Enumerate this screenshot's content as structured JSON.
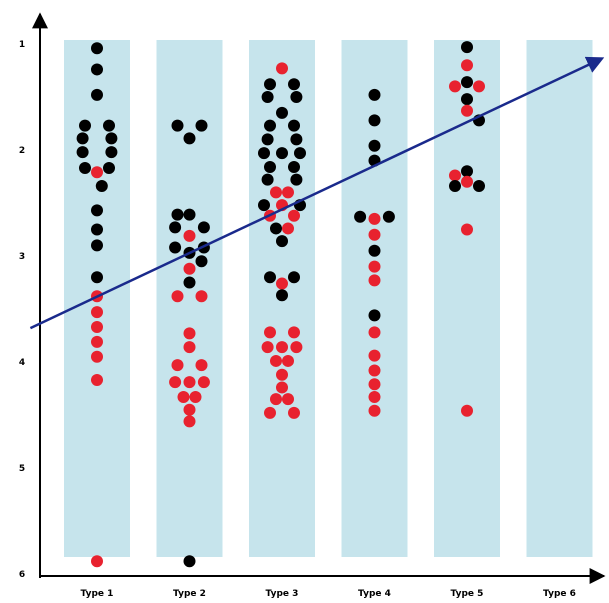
{
  "chart_data": {
    "type": "scatter",
    "title": "",
    "xlabel": "",
    "ylabel": "",
    "categories": [
      "Type 1",
      "Type 2",
      "Type 3",
      "Type 4",
      "Type 5",
      "Type 6"
    ],
    "yticks": [
      1,
      2,
      3,
      4,
      5,
      6
    ],
    "ylim": [
      1,
      6
    ],
    "y_inverted": true,
    "grid": false,
    "colors": {
      "band": "#c6e4ec",
      "black": "#000000",
      "red": "#e8222f",
      "trend": "#1a2a8c"
    },
    "points": [
      {
        "category": "Type 1",
        "offset": 0,
        "y": 1.04,
        "color": "black"
      },
      {
        "category": "Type 1",
        "offset": 0,
        "y": 1.24,
        "color": "black"
      },
      {
        "category": "Type 1",
        "offset": 0,
        "y": 1.48,
        "color": "black"
      },
      {
        "category": "Type 1",
        "offset": -1,
        "y": 1.77,
        "color": "black"
      },
      {
        "category": "Type 1",
        "offset": 1,
        "y": 1.77,
        "color": "black"
      },
      {
        "category": "Type 1",
        "offset": -1.2,
        "y": 1.89,
        "color": "black"
      },
      {
        "category": "Type 1",
        "offset": 1.2,
        "y": 1.89,
        "color": "black"
      },
      {
        "category": "Type 1",
        "offset": -1.2,
        "y": 2.02,
        "color": "black"
      },
      {
        "category": "Type 1",
        "offset": 1.2,
        "y": 2.02,
        "color": "black"
      },
      {
        "category": "Type 1",
        "offset": -1,
        "y": 2.17,
        "color": "black"
      },
      {
        "category": "Type 1",
        "offset": 0,
        "y": 2.21,
        "color": "red"
      },
      {
        "category": "Type 1",
        "offset": 1,
        "y": 2.17,
        "color": "black"
      },
      {
        "category": "Type 1",
        "offset": 0.4,
        "y": 2.34,
        "color": "black"
      },
      {
        "category": "Type 1",
        "offset": 0,
        "y": 2.57,
        "color": "black"
      },
      {
        "category": "Type 1",
        "offset": 0,
        "y": 2.75,
        "color": "black"
      },
      {
        "category": "Type 1",
        "offset": 0,
        "y": 2.9,
        "color": "black"
      },
      {
        "category": "Type 1",
        "offset": 0,
        "y": 3.2,
        "color": "black"
      },
      {
        "category": "Type 1",
        "offset": 0,
        "y": 3.38,
        "color": "red"
      },
      {
        "category": "Type 1",
        "offset": 0,
        "y": 3.53,
        "color": "red"
      },
      {
        "category": "Type 1",
        "offset": 0,
        "y": 3.67,
        "color": "red"
      },
      {
        "category": "Type 1",
        "offset": 0,
        "y": 3.81,
        "color": "red"
      },
      {
        "category": "Type 1",
        "offset": 0,
        "y": 3.95,
        "color": "red"
      },
      {
        "category": "Type 1",
        "offset": 0,
        "y": 4.17,
        "color": "red"
      },
      {
        "category": "Type 1",
        "offset": 0,
        "y": 5.88,
        "color": "red"
      },
      {
        "category": "Type 2",
        "offset": -1,
        "y": 1.77,
        "color": "black"
      },
      {
        "category": "Type 2",
        "offset": 1,
        "y": 1.77,
        "color": "black"
      },
      {
        "category": "Type 2",
        "offset": 0,
        "y": 1.89,
        "color": "black"
      },
      {
        "category": "Type 2",
        "offset": -1,
        "y": 2.61,
        "color": "black"
      },
      {
        "category": "Type 2",
        "offset": 0,
        "y": 2.61,
        "color": "black"
      },
      {
        "category": "Type 2",
        "offset": -1.2,
        "y": 2.73,
        "color": "black"
      },
      {
        "category": "Type 2",
        "offset": 1.2,
        "y": 2.73,
        "color": "black"
      },
      {
        "category": "Type 2",
        "offset": 0,
        "y": 2.81,
        "color": "red"
      },
      {
        "category": "Type 2",
        "offset": -1.2,
        "y": 2.92,
        "color": "black"
      },
      {
        "category": "Type 2",
        "offset": 1.2,
        "y": 2.92,
        "color": "black"
      },
      {
        "category": "Type 2",
        "offset": 0,
        "y": 2.97,
        "color": "black"
      },
      {
        "category": "Type 2",
        "offset": 1,
        "y": 3.05,
        "color": "black"
      },
      {
        "category": "Type 2",
        "offset": 0,
        "y": 3.12,
        "color": "red"
      },
      {
        "category": "Type 2",
        "offset": 0,
        "y": 3.25,
        "color": "black"
      },
      {
        "category": "Type 2",
        "offset": -1,
        "y": 3.38,
        "color": "red"
      },
      {
        "category": "Type 2",
        "offset": 1,
        "y": 3.38,
        "color": "red"
      },
      {
        "category": "Type 2",
        "offset": 0,
        "y": 3.73,
        "color": "red"
      },
      {
        "category": "Type 2",
        "offset": 0,
        "y": 3.86,
        "color": "red"
      },
      {
        "category": "Type 2",
        "offset": -1,
        "y": 4.03,
        "color": "red"
      },
      {
        "category": "Type 2",
        "offset": 1,
        "y": 4.03,
        "color": "red"
      },
      {
        "category": "Type 2",
        "offset": -1.2,
        "y": 4.19,
        "color": "red"
      },
      {
        "category": "Type 2",
        "offset": 0,
        "y": 4.19,
        "color": "red"
      },
      {
        "category": "Type 2",
        "offset": 1.2,
        "y": 4.19,
        "color": "red"
      },
      {
        "category": "Type 2",
        "offset": -0.5,
        "y": 4.33,
        "color": "red"
      },
      {
        "category": "Type 2",
        "offset": 0.5,
        "y": 4.33,
        "color": "red"
      },
      {
        "category": "Type 2",
        "offset": 0,
        "y": 4.45,
        "color": "red"
      },
      {
        "category": "Type 2",
        "offset": 0,
        "y": 4.56,
        "color": "red"
      },
      {
        "category": "Type 2",
        "offset": 0,
        "y": 5.88,
        "color": "black"
      },
      {
        "category": "Type 3",
        "offset": 0,
        "y": 1.23,
        "color": "red"
      },
      {
        "category": "Type 3",
        "offset": -1,
        "y": 1.38,
        "color": "black"
      },
      {
        "category": "Type 3",
        "offset": 1,
        "y": 1.38,
        "color": "black"
      },
      {
        "category": "Type 3",
        "offset": -1.2,
        "y": 1.5,
        "color": "black"
      },
      {
        "category": "Type 3",
        "offset": 1.2,
        "y": 1.5,
        "color": "black"
      },
      {
        "category": "Type 3",
        "offset": 0,
        "y": 1.65,
        "color": "black"
      },
      {
        "category": "Type 3",
        "offset": -1,
        "y": 1.77,
        "color": "black"
      },
      {
        "category": "Type 3",
        "offset": 1,
        "y": 1.77,
        "color": "black"
      },
      {
        "category": "Type 3",
        "offset": -1.2,
        "y": 1.9,
        "color": "black"
      },
      {
        "category": "Type 3",
        "offset": 1.2,
        "y": 1.9,
        "color": "black"
      },
      {
        "category": "Type 3",
        "offset": -1.5,
        "y": 2.03,
        "color": "black"
      },
      {
        "category": "Type 3",
        "offset": 0,
        "y": 2.03,
        "color": "black"
      },
      {
        "category": "Type 3",
        "offset": 1.5,
        "y": 2.03,
        "color": "black"
      },
      {
        "category": "Type 3",
        "offset": -1,
        "y": 2.16,
        "color": "black"
      },
      {
        "category": "Type 3",
        "offset": 1,
        "y": 2.16,
        "color": "black"
      },
      {
        "category": "Type 3",
        "offset": -1.2,
        "y": 2.28,
        "color": "black"
      },
      {
        "category": "Type 3",
        "offset": 1.2,
        "y": 2.28,
        "color": "black"
      },
      {
        "category": "Type 3",
        "offset": -0.5,
        "y": 2.4,
        "color": "red"
      },
      {
        "category": "Type 3",
        "offset": 0.5,
        "y": 2.4,
        "color": "red"
      },
      {
        "category": "Type 3",
        "offset": -1.5,
        "y": 2.52,
        "color": "black"
      },
      {
        "category": "Type 3",
        "offset": 0,
        "y": 2.52,
        "color": "red"
      },
      {
        "category": "Type 3",
        "offset": 1.5,
        "y": 2.52,
        "color": "black"
      },
      {
        "category": "Type 3",
        "offset": -1,
        "y": 2.62,
        "color": "red"
      },
      {
        "category": "Type 3",
        "offset": 1,
        "y": 2.62,
        "color": "red"
      },
      {
        "category": "Type 3",
        "offset": -0.5,
        "y": 2.74,
        "color": "black"
      },
      {
        "category": "Type 3",
        "offset": 0.5,
        "y": 2.74,
        "color": "red"
      },
      {
        "category": "Type 3",
        "offset": 0,
        "y": 2.86,
        "color": "black"
      },
      {
        "category": "Type 3",
        "offset": -1,
        "y": 3.2,
        "color": "black"
      },
      {
        "category": "Type 3",
        "offset": 1,
        "y": 3.2,
        "color": "black"
      },
      {
        "category": "Type 3",
        "offset": 0,
        "y": 3.26,
        "color": "red"
      },
      {
        "category": "Type 3",
        "offset": 0,
        "y": 3.37,
        "color": "black"
      },
      {
        "category": "Type 3",
        "offset": -1,
        "y": 3.72,
        "color": "red"
      },
      {
        "category": "Type 3",
        "offset": 1,
        "y": 3.72,
        "color": "red"
      },
      {
        "category": "Type 3",
        "offset": -1.2,
        "y": 3.86,
        "color": "red"
      },
      {
        "category": "Type 3",
        "offset": 0,
        "y": 3.86,
        "color": "red"
      },
      {
        "category": "Type 3",
        "offset": 1.2,
        "y": 3.86,
        "color": "red"
      },
      {
        "category": "Type 3",
        "offset": -0.5,
        "y": 3.99,
        "color": "red"
      },
      {
        "category": "Type 3",
        "offset": 0.5,
        "y": 3.99,
        "color": "red"
      },
      {
        "category": "Type 3",
        "offset": 0,
        "y": 4.12,
        "color": "red"
      },
      {
        "category": "Type 3",
        "offset": 0,
        "y": 4.24,
        "color": "red"
      },
      {
        "category": "Type 3",
        "offset": -0.5,
        "y": 4.35,
        "color": "red"
      },
      {
        "category": "Type 3",
        "offset": 0.5,
        "y": 4.35,
        "color": "red"
      },
      {
        "category": "Type 3",
        "offset": -1,
        "y": 4.48,
        "color": "red"
      },
      {
        "category": "Type 3",
        "offset": 1,
        "y": 4.48,
        "color": "red"
      },
      {
        "category": "Type 4",
        "offset": 0,
        "y": 1.48,
        "color": "black"
      },
      {
        "category": "Type 4",
        "offset": 0,
        "y": 1.72,
        "color": "black"
      },
      {
        "category": "Type 4",
        "offset": 0,
        "y": 1.96,
        "color": "black"
      },
      {
        "category": "Type 4",
        "offset": 0,
        "y": 2.1,
        "color": "black"
      },
      {
        "category": "Type 4",
        "offset": -1.2,
        "y": 2.63,
        "color": "black"
      },
      {
        "category": "Type 4",
        "offset": 0,
        "y": 2.65,
        "color": "red"
      },
      {
        "category": "Type 4",
        "offset": 1.2,
        "y": 2.63,
        "color": "black"
      },
      {
        "category": "Type 4",
        "offset": 0,
        "y": 2.8,
        "color": "red"
      },
      {
        "category": "Type 4",
        "offset": 0,
        "y": 2.95,
        "color": "black"
      },
      {
        "category": "Type 4",
        "offset": 0,
        "y": 3.1,
        "color": "red"
      },
      {
        "category": "Type 4",
        "offset": 0,
        "y": 3.23,
        "color": "red"
      },
      {
        "category": "Type 4",
        "offset": 0,
        "y": 3.56,
        "color": "black"
      },
      {
        "category": "Type 4",
        "offset": 0,
        "y": 3.72,
        "color": "red"
      },
      {
        "category": "Type 4",
        "offset": 0,
        "y": 3.94,
        "color": "red"
      },
      {
        "category": "Type 4",
        "offset": 0,
        "y": 4.08,
        "color": "red"
      },
      {
        "category": "Type 4",
        "offset": 0,
        "y": 4.21,
        "color": "red"
      },
      {
        "category": "Type 4",
        "offset": 0,
        "y": 4.33,
        "color": "red"
      },
      {
        "category": "Type 4",
        "offset": 0,
        "y": 4.46,
        "color": "red"
      },
      {
        "category": "Type 5",
        "offset": 0,
        "y": 1.03,
        "color": "black"
      },
      {
        "category": "Type 5",
        "offset": 0,
        "y": 1.2,
        "color": "red"
      },
      {
        "category": "Type 5",
        "offset": -1,
        "y": 1.4,
        "color": "red"
      },
      {
        "category": "Type 5",
        "offset": 0,
        "y": 1.36,
        "color": "black"
      },
      {
        "category": "Type 5",
        "offset": 1,
        "y": 1.4,
        "color": "red"
      },
      {
        "category": "Type 5",
        "offset": 0,
        "y": 1.52,
        "color": "black"
      },
      {
        "category": "Type 5",
        "offset": 0,
        "y": 1.63,
        "color": "red"
      },
      {
        "category": "Type 5",
        "offset": 1,
        "y": 1.72,
        "color": "black"
      },
      {
        "category": "Type 5",
        "offset": 0,
        "y": 2.2,
        "color": "black"
      },
      {
        "category": "Type 5",
        "offset": -1,
        "y": 2.24,
        "color": "red"
      },
      {
        "category": "Type 5",
        "offset": 0,
        "y": 2.3,
        "color": "red"
      },
      {
        "category": "Type 5",
        "offset": -1,
        "y": 2.34,
        "color": "black"
      },
      {
        "category": "Type 5",
        "offset": 1,
        "y": 2.34,
        "color": "black"
      },
      {
        "category": "Type 5",
        "offset": 0,
        "y": 2.75,
        "color": "red"
      },
      {
        "category": "Type 5",
        "offset": 0,
        "y": 4.46,
        "color": "red"
      }
    ],
    "trend_line": {
      "start": {
        "category_position": 0.28,
        "y": 3.68
      },
      "end": {
        "category_position": 6.45,
        "y": 1.14
      }
    }
  }
}
